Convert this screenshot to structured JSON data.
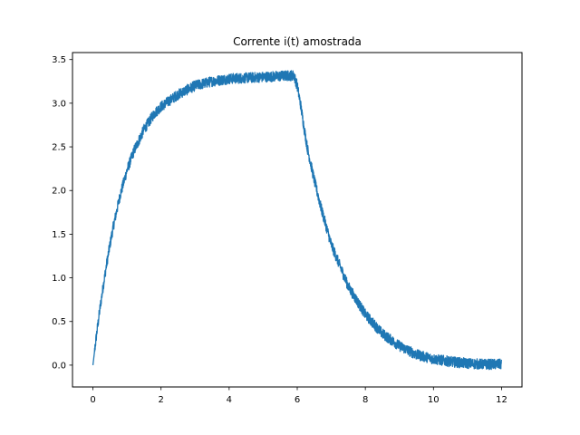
{
  "chart_data": {
    "type": "line",
    "title": "Corrente i(t) amostrada",
    "xlabel": "",
    "ylabel": "",
    "xlim": [
      -0.6,
      12.6
    ],
    "ylim": [
      -0.25,
      3.58
    ],
    "x_ticks": [
      0,
      2,
      4,
      6,
      8,
      10,
      12
    ],
    "x_tick_labels": [
      "0",
      "2",
      "4",
      "6",
      "8",
      "10",
      "12"
    ],
    "y_ticks": [
      0.0,
      0.5,
      1.0,
      1.5,
      2.0,
      2.5,
      3.0,
      3.5
    ],
    "y_tick_labels": [
      "0.0",
      "0.5",
      "1.0",
      "1.5",
      "2.0",
      "2.5",
      "3.0",
      "3.5"
    ],
    "grid": false,
    "series": [
      {
        "color": "#1f77b4",
        "x": [
          0,
          0.1,
          0.2,
          0.3,
          0.4,
          0.5,
          0.6,
          0.8,
          1.0,
          1.2,
          1.5,
          1.8,
          2.0,
          2.5,
          3.0,
          3.5,
          4.0,
          4.5,
          5.0,
          5.5,
          5.9,
          6.0,
          6.1,
          6.2,
          6.3,
          6.5,
          6.7,
          7.0,
          7.5,
          8.0,
          8.5,
          9.0,
          9.5,
          10.0,
          10.5,
          11.0,
          11.5,
          12.0
        ],
        "y": [
          0.0,
          0.33,
          0.63,
          0.9,
          1.15,
          1.38,
          1.59,
          1.95,
          2.23,
          2.45,
          2.7,
          2.88,
          2.96,
          3.1,
          3.2,
          3.25,
          3.28,
          3.29,
          3.3,
          3.31,
          3.32,
          3.2,
          2.98,
          2.72,
          2.48,
          2.12,
          1.8,
          1.38,
          0.9,
          0.58,
          0.36,
          0.22,
          0.12,
          0.07,
          0.04,
          0.02,
          0.01,
          0.01
        ]
      }
    ]
  }
}
